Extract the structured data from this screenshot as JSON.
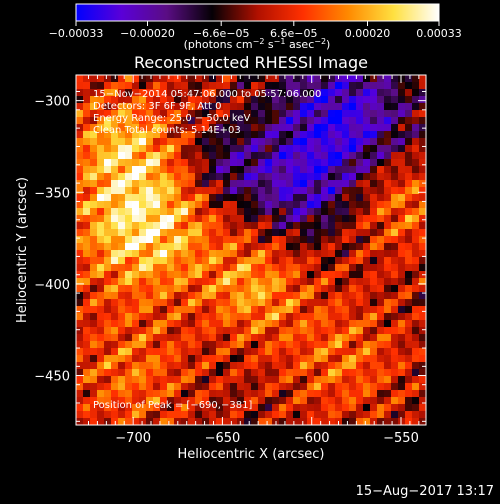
{
  "chart_data": {
    "type": "heatmap",
    "title": "Reconstructed RHESSI Image",
    "xlabel": "Heliocentric X (arcsec)",
    "ylabel": "Heliocentric Y (arcsec)",
    "xlim": [
      -732,
      -536
    ],
    "ylim": [
      -477,
      -286
    ],
    "xticks": [
      -700,
      -650,
      -600,
      -550
    ],
    "yticks": [
      -300,
      -350,
      -400,
      -450
    ],
    "xtick_labels": [
      "−700",
      "−650",
      "−600",
      "−550"
    ],
    "ytick_labels": [
      "−300",
      "−350",
      "−400",
      "−450"
    ],
    "colorbar": {
      "range": [
        -0.00033,
        0.00033
      ],
      "tick_labels": [
        "−0.00033",
        "−0.00020",
        "−6.6e−05",
        "6.6e−05",
        "0.00020",
        "0.00033"
      ],
      "tick_values": [
        -0.00033,
        -0.0002,
        -6.6e-05,
        6.6e-05,
        0.0002,
        0.00033
      ],
      "units_label": {
        "open": "(photons cm",
        "sup1": "−2",
        "mid1": " s",
        "sup2": "−1",
        "mid2": " asec",
        "sup3": "−2",
        "close": ")"
      },
      "colors": [
        "#0000ff",
        "#5a00d8",
        "#5a0d84",
        "#050005",
        "#b01000",
        "#ff3000",
        "#ff8a00",
        "#ffe040",
        "#ffffff"
      ]
    },
    "annotations": [
      "15−Nov−2014 05:47:06.000 to 05:57:06.000",
      "Detectors: 3F 6F 9F, Att 0",
      "Energy Range: 25.0 − 50.0 keV",
      "Clean   Total counts: 5.14E+03",
      "Position of Peak = [−690,−381]"
    ],
    "peak": {
      "x": -690,
      "y": -381
    },
    "grid": false
  },
  "footer": {
    "date": "15−Aug−2017 13:17"
  }
}
